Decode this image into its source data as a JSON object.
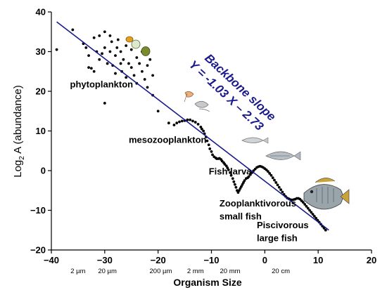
{
  "colors": {
    "line": "#1a1a8c",
    "points": "#000000",
    "slope_text": "#1a1a8c",
    "fish_body": "#9aa4ab",
    "fish_fin": "#c9a23a",
    "phyto_green": "#7a8a2c",
    "phyto_orange": "#e0a020"
  },
  "chart_data": {
    "type": "scatter",
    "title": "",
    "xlabel": "Organism Size",
    "ylabel_main": "Log",
    "ylabel_sub": "2",
    "ylabel_rest": " A (abundance)",
    "xlim": [
      -40,
      20
    ],
    "ylim": [
      -20,
      40
    ],
    "x_ticks": [
      -40,
      -30,
      -20,
      -10,
      0,
      10,
      20
    ],
    "x_tick_labels": [
      "−40",
      "−30",
      "−20",
      "−10",
      "0",
      "10",
      "20"
    ],
    "y_ticks": [
      -20,
      -10,
      0,
      10,
      20,
      30,
      40
    ],
    "y_tick_labels": [
      "−20",
      "−10",
      "0",
      "10",
      "20",
      "30",
      "40"
    ],
    "size_labels": [
      {
        "x": -35.0,
        "text": "2 µm"
      },
      {
        "x": -29.5,
        "text": "20 µm"
      },
      {
        "x": -19.5,
        "text": "200 µm"
      },
      {
        "x": -13.0,
        "text": "2 mm"
      },
      {
        "x": -6.5,
        "text": "20 mm"
      },
      {
        "x": 3.0,
        "text": "20 cm"
      }
    ],
    "fit_line": {
      "x": [
        -39.0,
        12.0
      ],
      "y": [
        37.5,
        -15.0
      ]
    },
    "slope_label_line1": "Backbone slope",
    "slope_label_line2": "Y = -1.03 X – 2.73",
    "annotations": [
      {
        "text": "phytoplankton",
        "x": -36.5,
        "y": 21.0
      },
      {
        "text": "mesozooplankton",
        "x": -25.5,
        "y": 7.0
      },
      {
        "text": "Fish larva",
        "x": -10.5,
        "y": -1.0
      },
      {
        "text": "Zooplanktivorous",
        "x": -8.5,
        "y": -9.0
      },
      {
        "text": "small fish",
        "x": -8.5,
        "y": -12.3
      },
      {
        "text": "Piscivorous",
        "x": -1.5,
        "y": -14.5
      },
      {
        "text": "large fish",
        "x": -1.5,
        "y": -17.8
      }
    ],
    "points": [
      [
        -39,
        30.5
      ],
      [
        -36,
        35.5
      ],
      [
        -34,
        32
      ],
      [
        -33.5,
        31
      ],
      [
        -33,
        29
      ],
      [
        -33,
        26
      ],
      [
        -32.5,
        25.8
      ],
      [
        -32,
        25
      ],
      [
        -32,
        33.5
      ],
      [
        -31.5,
        30
      ],
      [
        -31,
        34
      ],
      [
        -31,
        28
      ],
      [
        -30.5,
        29.5
      ],
      [
        -30,
        35
      ],
      [
        -30,
        31
      ],
      [
        -29.5,
        27
      ],
      [
        -29,
        34
      ],
      [
        -29,
        30
      ],
      [
        -28.7,
        32.5
      ],
      [
        -28.5,
        26.5
      ],
      [
        -28,
        29
      ],
      [
        -28,
        24.5
      ],
      [
        -27.7,
        31
      ],
      [
        -27.5,
        33
      ],
      [
        -27,
        30
      ],
      [
        -27,
        27
      ],
      [
        -26.8,
        25
      ],
      [
        -26.5,
        28
      ],
      [
        -26,
        31.5
      ],
      [
        -26,
        23.5
      ],
      [
        -25.5,
        27
      ],
      [
        -25,
        30.5
      ],
      [
        -25,
        26
      ],
      [
        -24.5,
        24
      ],
      [
        -24,
        28.5
      ],
      [
        -24,
        22
      ],
      [
        -23.5,
        27
      ],
      [
        -23,
        25
      ],
      [
        -23,
        30
      ],
      [
        -22.5,
        23
      ],
      [
        -22,
        26.5
      ],
      [
        -22,
        21
      ],
      [
        -21.5,
        28
      ],
      [
        -21,
        24
      ],
      [
        -21,
        19
      ],
      [
        -30,
        17
      ],
      [
        -20,
        15
      ],
      [
        -18,
        12
      ],
      [
        -17,
        11.5
      ],
      [
        -16.5,
        12
      ],
      [
        -16,
        12.3
      ],
      [
        -15.5,
        12.5
      ],
      [
        -15,
        12.6
      ],
      [
        -14.5,
        12.8
      ],
      [
        -14,
        12.8
      ],
      [
        -13.5,
        12.5
      ],
      [
        -13,
        12.2
      ],
      [
        -12.5,
        11.7
      ],
      [
        -12,
        11
      ],
      [
        -11.8,
        10.5
      ],
      [
        -11.5,
        10
      ],
      [
        -11.3,
        9.3
      ],
      [
        -11,
        8.5
      ],
      [
        -10.8,
        7.5
      ],
      [
        -10.5,
        6.5
      ],
      [
        -10.3,
        5.5
      ],
      [
        -10,
        4.8
      ],
      [
        -9.8,
        4
      ],
      [
        -9.5,
        3.5
      ],
      [
        -9.2,
        3.2
      ],
      [
        -9,
        3
      ],
      [
        -8.7,
        3
      ],
      [
        -8.5,
        3.1
      ],
      [
        -8.2,
        2.8
      ],
      [
        -8,
        2.4
      ],
      [
        -7.7,
        2
      ],
      [
        -7.5,
        1.6
      ],
      [
        -7.2,
        1.2
      ],
      [
        -7,
        0.7
      ],
      [
        -6.8,
        0.2
      ],
      [
        -6.5,
        -0.5
      ],
      [
        -6.3,
        -1.2
      ],
      [
        -6,
        -2
      ],
      [
        -5.8,
        -2.8
      ],
      [
        -5.6,
        -3.5
      ],
      [
        -5.4,
        -4.2
      ],
      [
        -5.2,
        -5
      ],
      [
        -5,
        -5.5
      ],
      [
        -4.8,
        -5
      ],
      [
        -4.6,
        -4.5
      ],
      [
        -4.4,
        -4
      ],
      [
        -4.2,
        -3.5
      ],
      [
        -4,
        -3
      ],
      [
        -3.8,
        -2.5
      ],
      [
        -3.5,
        -2
      ],
      [
        -3.2,
        -1.8
      ],
      [
        -3,
        -1.5
      ],
      [
        -2.7,
        -1
      ],
      [
        -2.4,
        -0.5
      ],
      [
        -2.1,
        0
      ],
      [
        -1.8,
        0.4
      ],
      [
        -1.5,
        0.8
      ],
      [
        -1.2,
        1
      ],
      [
        -0.9,
        1.1
      ],
      [
        -0.6,
        1
      ],
      [
        -0.3,
        0.8
      ],
      [
        0,
        0.5
      ],
      [
        0.3,
        0.2
      ],
      [
        0.6,
        -0.2
      ],
      [
        0.9,
        -0.7
      ],
      [
        1.2,
        -1.2
      ],
      [
        1.5,
        -1.8
      ],
      [
        1.8,
        -2.4
      ],
      [
        2.1,
        -3
      ],
      [
        2.4,
        -3.6
      ],
      [
        2.7,
        -4.2
      ],
      [
        3,
        -4.8
      ],
      [
        3.3,
        -5.4
      ],
      [
        3.6,
        -6
      ],
      [
        3.9,
        -6.5
      ],
      [
        4.2,
        -6.9
      ],
      [
        4.5,
        -7.1
      ],
      [
        4.8,
        -7.3
      ],
      [
        5.1,
        -7.4
      ],
      [
        5.4,
        -7.3
      ],
      [
        5.7,
        -7.2
      ],
      [
        6,
        -7
      ],
      [
        6.3,
        -7
      ],
      [
        6.6,
        -7.2
      ],
      [
        6.9,
        -7.6
      ],
      [
        7.2,
        -8
      ],
      [
        7.5,
        -8.5
      ],
      [
        7.8,
        -9
      ],
      [
        8.1,
        -9.5
      ],
      [
        8.4,
        -10
      ],
      [
        8.7,
        -10.5
      ],
      [
        9,
        -11
      ],
      [
        9.3,
        -11.5
      ],
      [
        9.6,
        -12
      ],
      [
        9.9,
        -12.5
      ],
      [
        10.2,
        -13
      ],
      [
        10.5,
        -13.5
      ],
      [
        10.8,
        -14
      ],
      [
        11.1,
        -14.5
      ],
      [
        11.4,
        -15
      ]
    ]
  }
}
